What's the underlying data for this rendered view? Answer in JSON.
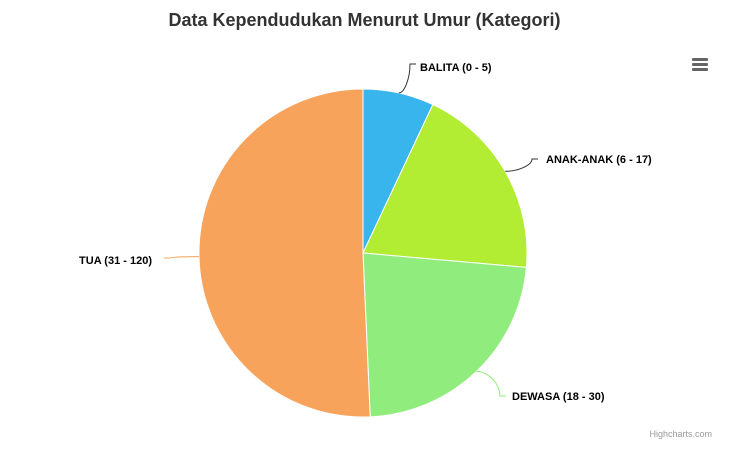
{
  "chart_data": {
    "type": "pie",
    "title": "Data Kependudukan Menurut Umur (Kategori)",
    "categories": [
      "BALITA (0 - 5)",
      "ANAK-ANAK (6 - 17)",
      "DEWASA (18 - 30)",
      "TUA (31 - 120)"
    ],
    "values": [
      7.0,
      19.4,
      22.9,
      50.7
    ],
    "colors": [
      "#38b5ec",
      "#b2ec33",
      "#90ed7d",
      "#f7a35c"
    ],
    "legend": "none"
  },
  "credits": "Highcharts.com",
  "menu_icon": "hamburger-menu-icon"
}
